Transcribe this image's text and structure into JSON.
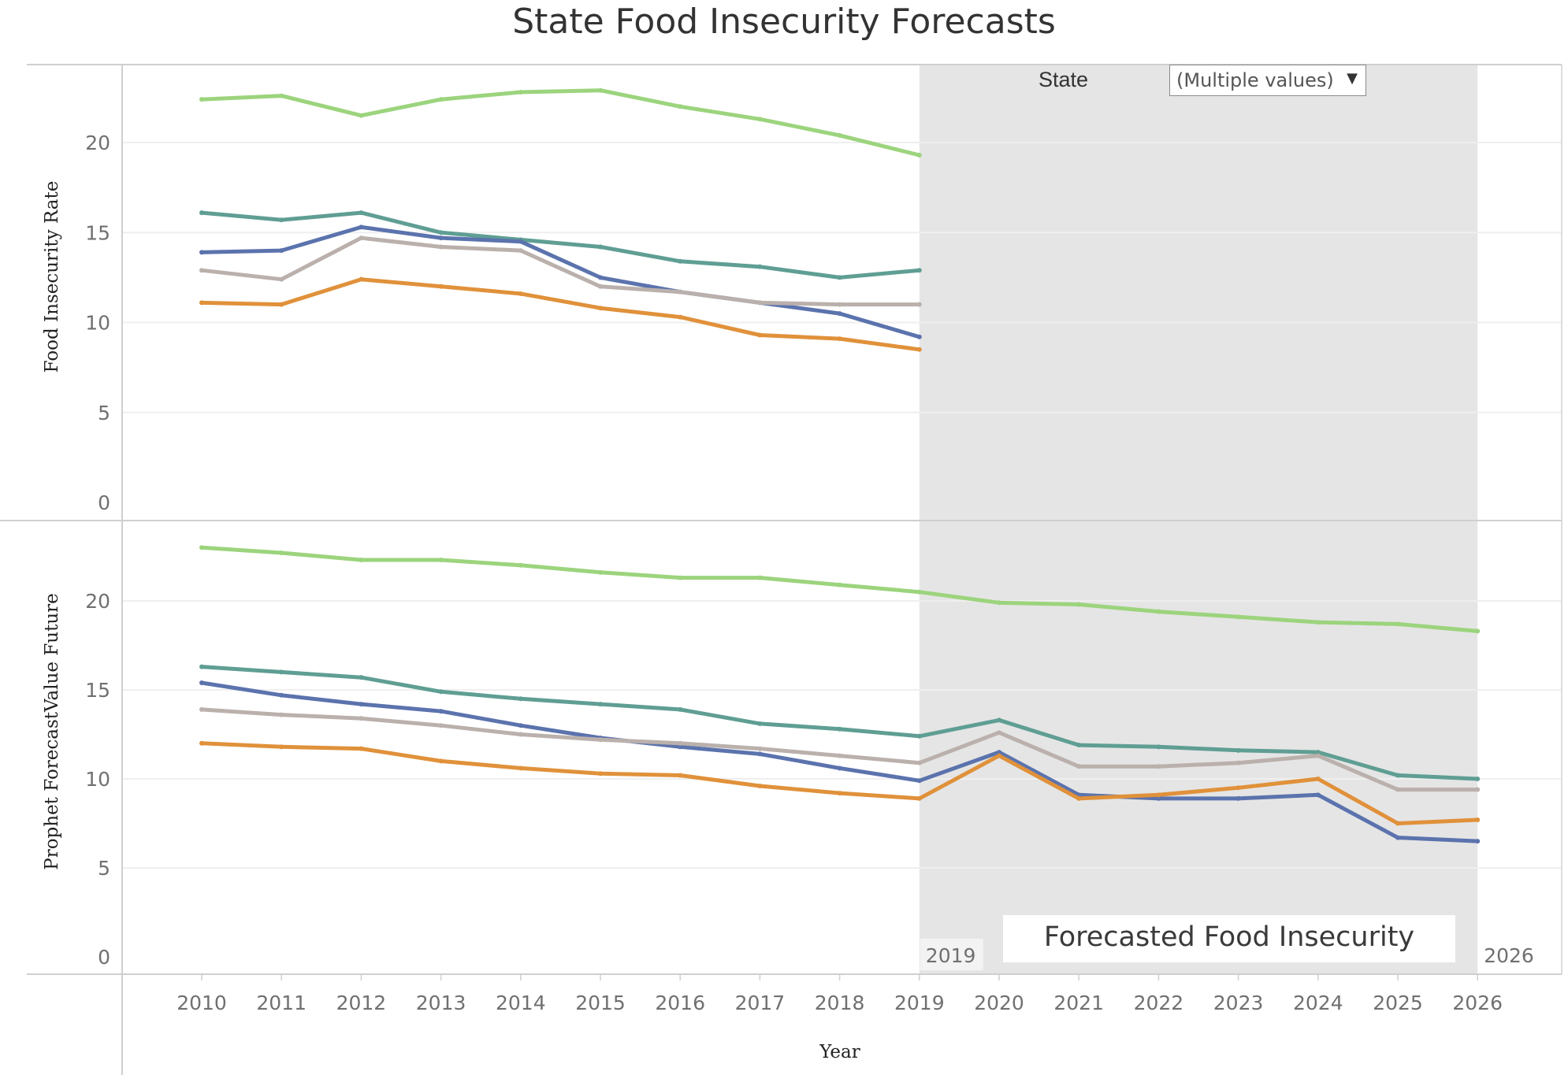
{
  "title": "State Food Insecurity Forecasts",
  "filter": {
    "label": "State",
    "value": "(Multiple values)",
    "caret_icon": "dropdown-caret-icon"
  },
  "annotation": {
    "text": "Forecasted Food Insecurity",
    "band_start_label": "2019",
    "band_end_label": "2026",
    "band_range": [
      2019,
      2026
    ],
    "band_color": "#e5e5e5"
  },
  "chart_data": [
    {
      "type": "line",
      "ylabel": "Food Insecurity Rate",
      "ylim": [
        0,
        23.5
      ],
      "yticks": [
        "0",
        "5",
        "10",
        "15",
        "20"
      ],
      "grid": true,
      "x": [
        2010,
        2011,
        2012,
        2013,
        2014,
        2015,
        2016,
        2017,
        2018,
        2019
      ],
      "series": [
        {
          "color": "#9cd47d",
          "values": [
            22.4,
            22.6,
            21.5,
            22.4,
            22.8,
            22.9,
            22.0,
            21.3,
            20.4,
            19.3
          ]
        },
        {
          "color": "#5f9e93",
          "values": [
            16.1,
            15.7,
            16.1,
            15.0,
            14.6,
            14.2,
            13.4,
            13.1,
            12.5,
            12.9
          ]
        },
        {
          "color": "#5b73ad",
          "values": [
            13.9,
            14.0,
            15.3,
            14.7,
            14.5,
            12.5,
            11.7,
            11.1,
            10.5,
            9.2
          ]
        },
        {
          "color": "#bab0ac",
          "values": [
            12.9,
            12.4,
            14.7,
            14.2,
            14.0,
            12.0,
            11.7,
            11.1,
            11.0,
            11.0
          ]
        },
        {
          "color": "#e0913a",
          "values": [
            11.1,
            11.0,
            12.4,
            12.0,
            11.6,
            10.8,
            10.3,
            9.3,
            9.1,
            8.5
          ]
        }
      ]
    },
    {
      "type": "line",
      "ylabel": "Prophet ForecastValue Future",
      "ylim": [
        0,
        23.5
      ],
      "yticks": [
        "0",
        "5",
        "10",
        "15",
        "20"
      ],
      "grid": true,
      "xlabel": "Year",
      "x": [
        2010,
        2011,
        2012,
        2013,
        2014,
        2015,
        2016,
        2017,
        2018,
        2019,
        2020,
        2021,
        2022,
        2023,
        2024,
        2025,
        2026
      ],
      "series": [
        {
          "color": "#9cd47d",
          "values": [
            23.0,
            22.7,
            22.3,
            22.3,
            22.0,
            21.6,
            21.3,
            21.3,
            20.9,
            20.5,
            19.9,
            19.8,
            19.4,
            19.1,
            18.8,
            18.7,
            18.3
          ]
        },
        {
          "color": "#5f9e93",
          "values": [
            16.3,
            16.0,
            15.7,
            14.9,
            14.5,
            14.2,
            13.9,
            13.1,
            12.8,
            12.4,
            13.3,
            11.9,
            11.8,
            11.6,
            11.5,
            10.2,
            10.0
          ]
        },
        {
          "color": "#5b73ad",
          "values": [
            15.4,
            14.7,
            14.2,
            13.8,
            13.0,
            12.3,
            11.8,
            11.4,
            10.6,
            9.9,
            11.5,
            9.1,
            8.9,
            8.9,
            9.1,
            6.7,
            6.5
          ]
        },
        {
          "color": "#bab0ac",
          "values": [
            13.9,
            13.6,
            13.4,
            13.0,
            12.5,
            12.2,
            12.0,
            11.7,
            11.3,
            10.9,
            12.6,
            10.7,
            10.7,
            10.9,
            11.3,
            9.4,
            9.4
          ]
        },
        {
          "color": "#e0913a",
          "values": [
            12.0,
            11.8,
            11.7,
            11.0,
            10.6,
            10.3,
            10.2,
            9.6,
            9.2,
            8.9,
            11.3,
            8.9,
            9.1,
            9.5,
            10.0,
            7.5,
            7.7
          ]
        }
      ]
    }
  ]
}
